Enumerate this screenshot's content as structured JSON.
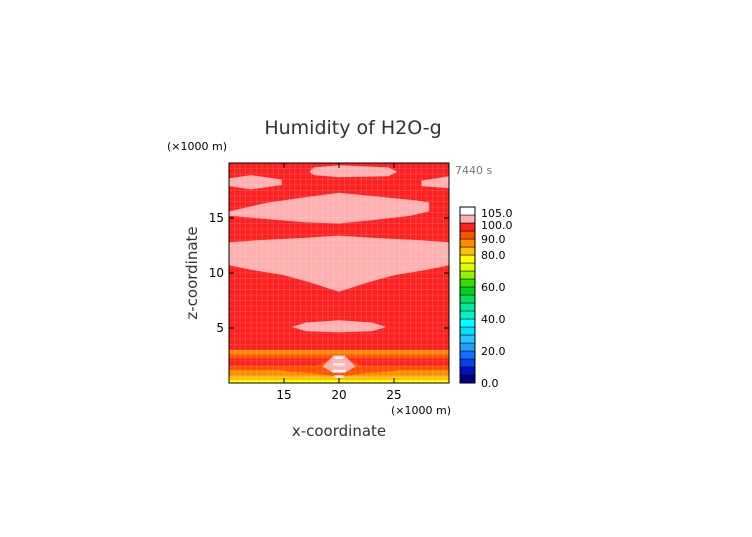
{
  "chart_data": {
    "type": "heatmap",
    "title": "Humidity of H2O-g",
    "time_label": "7440 s",
    "xlabel": "x-coordinate",
    "ylabel": "z-coordinate",
    "x_unit": "(×1000 m)",
    "z_unit": "(×1000 m)",
    "xlim": [
      10,
      30
    ],
    "ylim": [
      0,
      20
    ],
    "x_ticks": [
      "15",
      "20",
      "25"
    ],
    "y_ticks": [
      "5",
      "10",
      "15"
    ],
    "x_tick_values": [
      15,
      20,
      25
    ],
    "y_tick_values": [
      5,
      10,
      15
    ],
    "colorbar": {
      "tick_labels": [
        "0.0",
        "20.0",
        "40.0",
        "60.0",
        "80.0",
        "90.0",
        "100.0",
        "105.0"
      ],
      "tick_values": [
        0,
        20,
        40,
        60,
        80,
        90,
        100,
        105
      ],
      "levels": [
        {
          "from": 0,
          "to": 5,
          "color": "#000080"
        },
        {
          "from": 5,
          "to": 10,
          "color": "#0010c0"
        },
        {
          "from": 10,
          "to": 15,
          "color": "#0040f0"
        },
        {
          "from": 15,
          "to": 20,
          "color": "#1070ff"
        },
        {
          "from": 20,
          "to": 25,
          "color": "#20a0ff"
        },
        {
          "from": 25,
          "to": 30,
          "color": "#20c8ff"
        },
        {
          "from": 30,
          "to": 35,
          "color": "#00e0ff"
        },
        {
          "from": 35,
          "to": 40,
          "color": "#00ffff"
        },
        {
          "from": 40,
          "to": 45,
          "color": "#00f0c8"
        },
        {
          "from": 45,
          "to": 50,
          "color": "#00e898"
        },
        {
          "from": 50,
          "to": 55,
          "color": "#00e060"
        },
        {
          "from": 55,
          "to": 60,
          "color": "#00d020"
        },
        {
          "from": 60,
          "to": 65,
          "color": "#30e000"
        },
        {
          "from": 65,
          "to": 70,
          "color": "#90f000"
        },
        {
          "from": 70,
          "to": 75,
          "color": "#e0ff00"
        },
        {
          "from": 75,
          "to": 80,
          "color": "#ffff00"
        },
        {
          "from": 80,
          "to": 85,
          "color": "#ffc000"
        },
        {
          "from": 85,
          "to": 90,
          "color": "#ff8c00"
        },
        {
          "from": 90,
          "to": 95,
          "color": "#ff5000"
        },
        {
          "from": 95,
          "to": 100,
          "color": "#ff2020"
        },
        {
          "from": 100,
          "to": 105,
          "color": "#ffb0b0"
        },
        {
          "from": 105,
          "to": 110,
          "color": "#ffffff"
        }
      ]
    },
    "field": {
      "background_color": "#ff2020",
      "regions": [
        {
          "type": "band",
          "z_from": 0,
          "z_to": 0.3,
          "color": "#ffff00"
        },
        {
          "type": "band",
          "z_from": 0.3,
          "z_to": 0.7,
          "color": "#ffc000"
        },
        {
          "type": "band",
          "z_from": 0.7,
          "z_to": 1.2,
          "color": "#ff8c00"
        },
        {
          "type": "band",
          "z_from": 1.2,
          "z_to": 1.6,
          "color": "#ff5000"
        },
        {
          "type": "band",
          "z_from": 2.2,
          "z_to": 2.6,
          "color": "#ff5000"
        },
        {
          "type": "band",
          "z_from": 2.6,
          "z_to": 3.0,
          "color": "#ff8c00"
        },
        {
          "type": "poly",
          "color": "#ff5000",
          "points": [
            [
              14.5,
              1.1
            ],
            [
              17.5,
              1.4
            ],
            [
              19.8,
              2.4
            ],
            [
              20.2,
              2.4
            ],
            [
              22.5,
              1.4
            ],
            [
              25.5,
              1.1
            ],
            [
              22.5,
              0.9
            ],
            [
              20.2,
              0.6
            ],
            [
              19.8,
              0.6
            ],
            [
              17.5,
              0.9
            ]
          ]
        },
        {
          "type": "poly",
          "color": "#ffb0b0",
          "points": [
            [
              18.5,
              1.5
            ],
            [
              19.5,
              2.5
            ],
            [
              20.5,
              2.5
            ],
            [
              21.5,
              1.5
            ],
            [
              20.5,
              0.9
            ],
            [
              19.5,
              0.9
            ]
          ]
        },
        {
          "type": "rect",
          "x_from": 19.4,
          "x_to": 20.6,
          "z_from": 1.0,
          "z_to": 1.2,
          "color": "#ffffff"
        },
        {
          "type": "rect",
          "x_from": 19.5,
          "x_to": 20.5,
          "z_from": 1.6,
          "z_to": 1.8,
          "color": "#ffffff"
        },
        {
          "type": "rect",
          "x_from": 19.6,
          "x_to": 20.4,
          "z_from": 2.2,
          "z_to": 2.4,
          "color": "#ffffff"
        },
        {
          "type": "rect",
          "x_from": 19.6,
          "x_to": 20.4,
          "z_from": 0.5,
          "z_to": 0.7,
          "color": "#ffffff"
        },
        {
          "type": "poly",
          "color": "#ffb0b0",
          "points": [
            [
              15.7,
              5.1
            ],
            [
              17.0,
              5.5
            ],
            [
              20.0,
              5.7
            ],
            [
              23.0,
              5.5
            ],
            [
              24.3,
              5.1
            ],
            [
              23.0,
              4.7
            ],
            [
              20.0,
              4.6
            ],
            [
              17.0,
              4.7
            ]
          ]
        },
        {
          "type": "poly",
          "color": "#ffb0b0",
          "points": [
            [
              10,
              12.8
            ],
            [
              13,
              13.0
            ],
            [
              17,
              13.2
            ],
            [
              20,
              13.4
            ],
            [
              23,
              13.2
            ],
            [
              27,
              13.0
            ],
            [
              30,
              12.8
            ],
            [
              30,
              10.7
            ],
            [
              28,
              10.3
            ],
            [
              25,
              9.8
            ],
            [
              22.5,
              9.1
            ],
            [
              20,
              8.3
            ],
            [
              17.5,
              9.1
            ],
            [
              15,
              9.8
            ],
            [
              12,
              10.3
            ],
            [
              10,
              10.7
            ]
          ]
        },
        {
          "type": "poly",
          "color": "#ffb0b0",
          "points": [
            [
              10,
              15.6
            ],
            [
              13.5,
              16.4
            ],
            [
              17,
              16.9
            ],
            [
              20,
              17.3
            ],
            [
              23,
              17.0
            ],
            [
              27,
              16.6
            ],
            [
              28.2,
              16.4
            ],
            [
              28.2,
              15.6
            ],
            [
              26.5,
              15.2
            ],
            [
              23,
              14.8
            ],
            [
              20,
              14.5
            ],
            [
              17,
              14.6
            ],
            [
              13.5,
              14.9
            ],
            [
              10,
              15.2
            ]
          ]
        },
        {
          "type": "poly",
          "color": "#ffb0b0",
          "points": [
            [
              10,
              18.6
            ],
            [
              12,
              18.9
            ],
            [
              14.8,
              18.5
            ],
            [
              14.8,
              18.0
            ],
            [
              12,
              17.6
            ],
            [
              10,
              17.9
            ]
          ]
        },
        {
          "type": "poly",
          "color": "#ffb0b0",
          "points": [
            [
              27.5,
              18.4
            ],
            [
              30,
              18.8
            ],
            [
              30,
              17.7
            ],
            [
              27.5,
              17.9
            ]
          ]
        },
        {
          "type": "poly",
          "color": "#ffb0b0",
          "points": [
            [
              17.7,
              19.6
            ],
            [
              20,
              19.8
            ],
            [
              24.5,
              19.6
            ],
            [
              25.3,
              19.2
            ],
            [
              24.5,
              18.8
            ],
            [
              20,
              18.7
            ],
            [
              17.7,
              18.9
            ],
            [
              17.3,
              19.2
            ]
          ]
        }
      ]
    },
    "grid": true
  }
}
